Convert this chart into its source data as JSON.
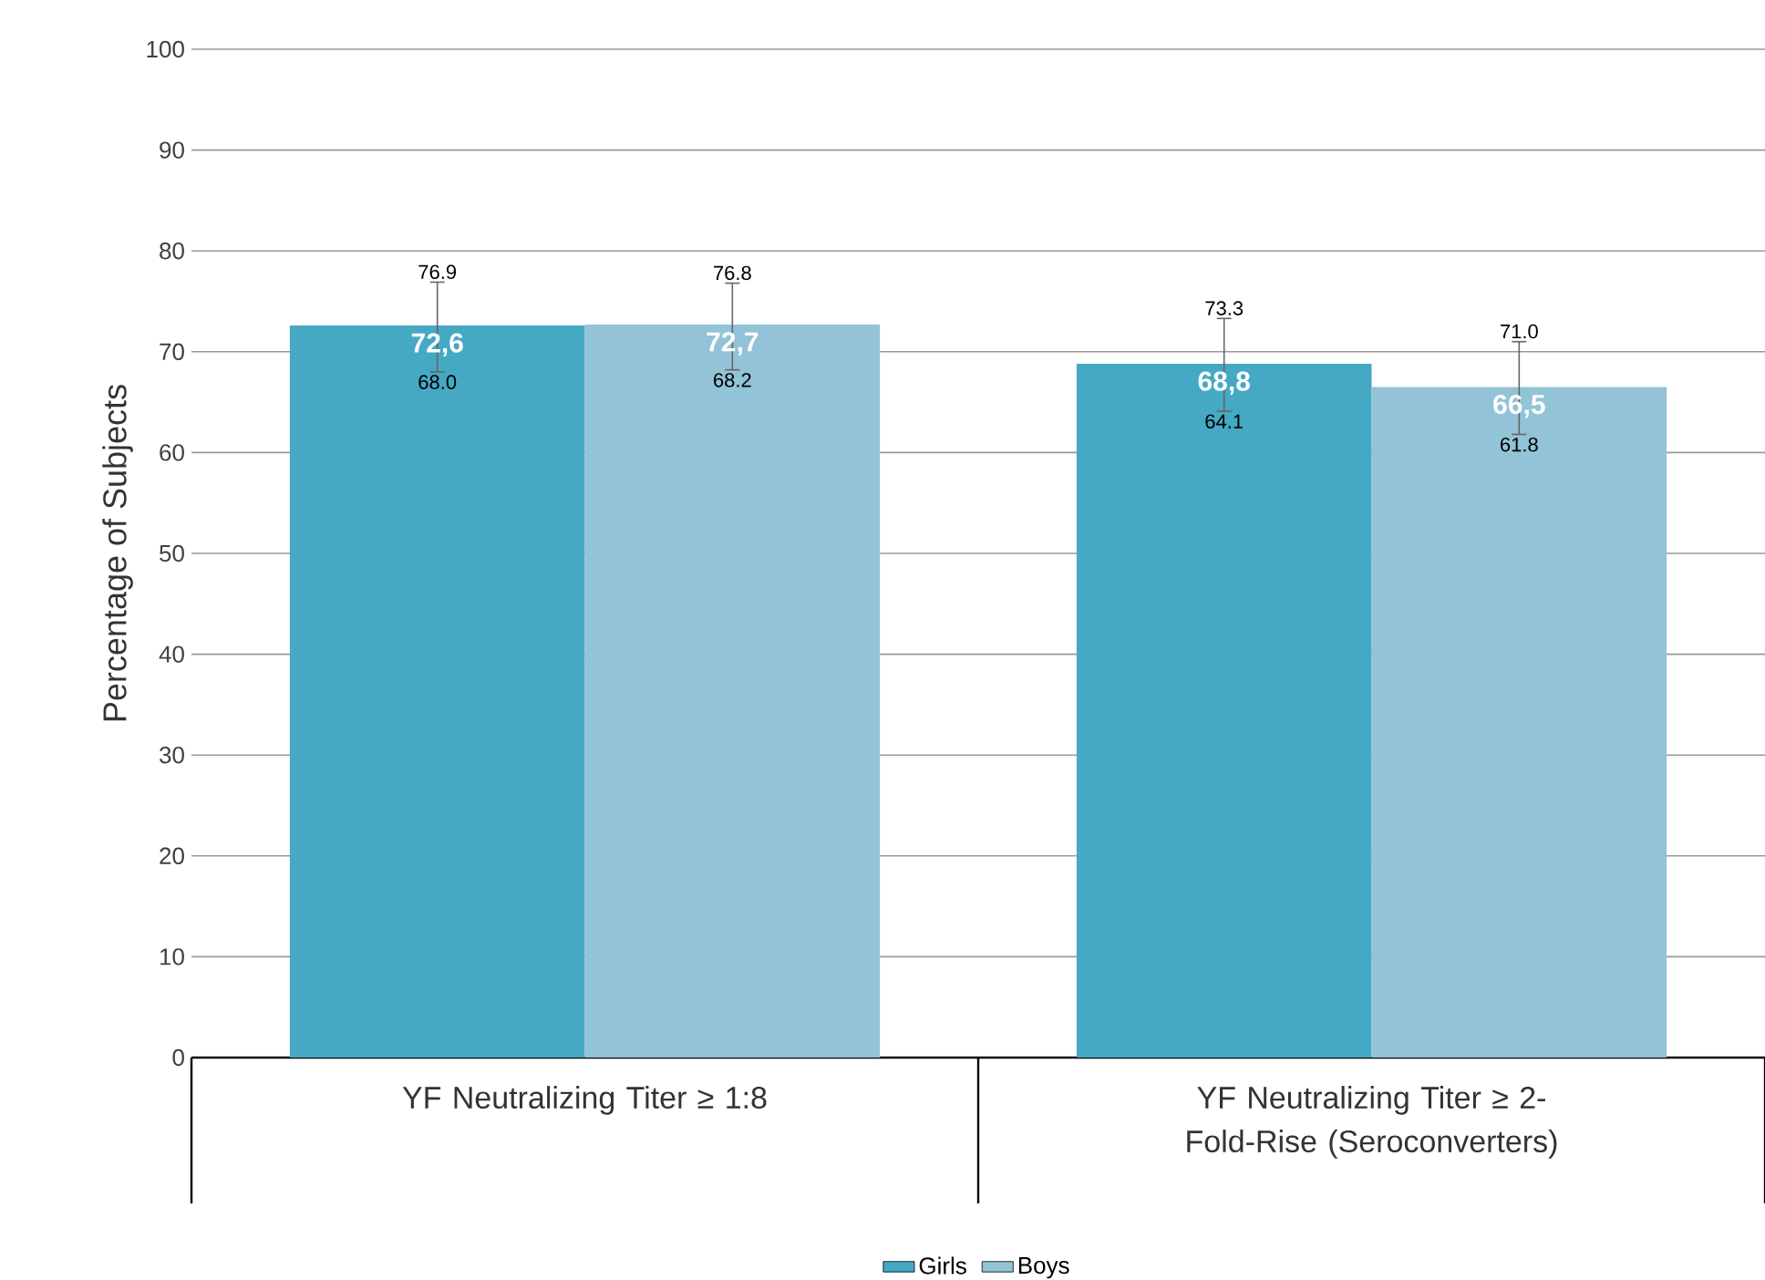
{
  "chart_data": {
    "type": "bar",
    "ylabel": "Percentage of Subjects",
    "categories": [
      "YF Neutralizing Titer ≥ 1:8",
      "YF Neutralizing Titer ≥ 2-Fold-Rise (Seroconverters)"
    ],
    "series": [
      {
        "name": "Girls",
        "color": "#45a9c4",
        "values": [
          72.6,
          68.8
        ],
        "value_labels": [
          "72,6",
          "68,8"
        ],
        "errors": [
          [
            68.0,
            76.9
          ],
          [
            64.1,
            73.3
          ]
        ]
      },
      {
        "name": "Boys",
        "color": "#93c3d6",
        "values": [
          72.7,
          66.5
        ],
        "value_labels": [
          "72,7",
          "66,5"
        ],
        "errors": [
          [
            68.2,
            76.8
          ],
          [
            61.8,
            71.0
          ]
        ]
      }
    ],
    "annotations": [
      "76.9",
      "68.0",
      "76.8",
      "68.2",
      "73.3",
      "64.1",
      "71.0",
      "61.8"
    ],
    "ylim": [
      0,
      100
    ],
    "yticks": [
      0,
      10,
      20,
      30,
      40,
      50,
      60,
      70,
      80,
      90,
      100
    ],
    "grid": "y",
    "legend": "bottom"
  }
}
